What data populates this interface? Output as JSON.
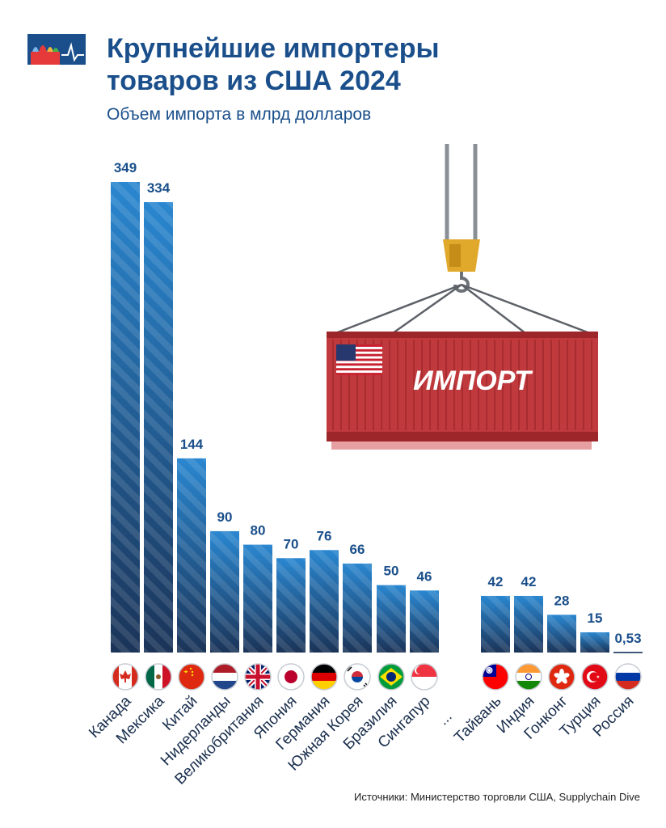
{
  "header": {
    "title_line1": "Крупнейшие импортеры",
    "title_line2": "товаров из США 2024",
    "subtitle": "Объем импорта в млрд долларов",
    "logo": "kremlin-pulse-logo"
  },
  "container": {
    "label": "ИМПОРТ",
    "flag": "us-flag",
    "color": "#c0393d"
  },
  "chart_data": {
    "type": "bar",
    "title": "Крупнейшие импортеры товаров из США 2024",
    "ylabel": "Объем импорта в млрд долларов",
    "xlabel": "",
    "ylim": [
      0,
      349
    ],
    "categories": [
      "Канада",
      "Мексика",
      "Китай",
      "Нидерланды",
      "Великобритания",
      "Япония",
      "Германия",
      "Южная Корея",
      "Бразилия",
      "Сингапур",
      "Тайвань",
      "Индия",
      "Гонконг",
      "Турция",
      "Россия"
    ],
    "values": [
      349,
      334,
      144,
      90,
      80,
      70,
      76,
      66,
      50,
      46,
      42,
      42,
      28,
      15,
      0.53
    ],
    "value_labels": [
      "349",
      "334",
      "144",
      "90",
      "80",
      "70",
      "76",
      "66",
      "50",
      "46",
      "42",
      "42",
      "28",
      "15",
      "0,53"
    ],
    "gap_label": "...",
    "flags": [
      "canada",
      "mexico",
      "china",
      "netherlands",
      "uk",
      "japan",
      "germany",
      "south-korea",
      "brazil",
      "singapore",
      "taiwan",
      "india",
      "hong-kong",
      "turkey",
      "russia"
    ],
    "colors": {
      "top": "#2a87d0",
      "bottom": "#1b3458",
      "label": "#1a4f8b"
    }
  },
  "footer": {
    "source": "Источники: Министерство торговли США, Supplychain Dive"
  }
}
